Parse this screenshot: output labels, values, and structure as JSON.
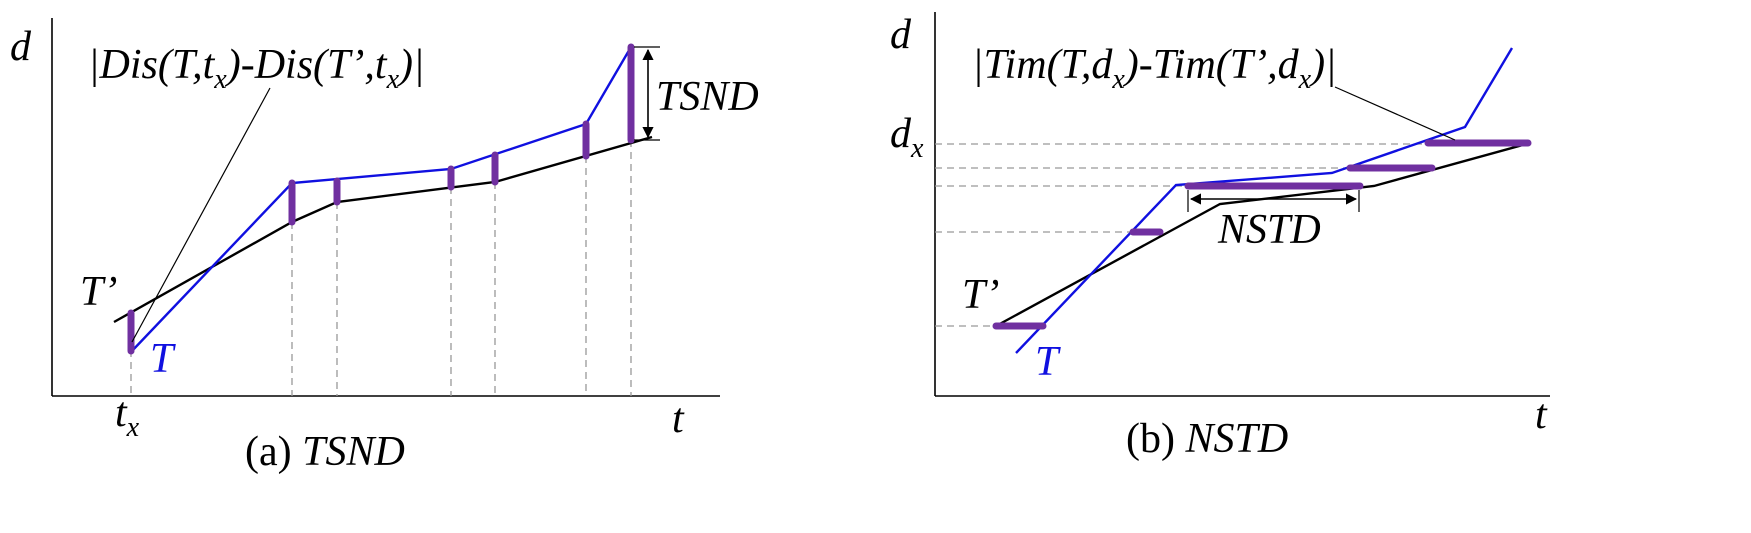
{
  "panel_a": {
    "axis_y": "d",
    "axis_x": "t",
    "formula": "|Dis(T,tx)-Dis(T’,tx)|",
    "formula_parts": {
      "open": "|Dis(T,t",
      "sub1": "x",
      "mid": ")-Dis(T’,t",
      "sub2": "x",
      "close": ")|"
    },
    "measure_label": "TSND",
    "series_T_label": "T",
    "series_Tp_label": "T’",
    "tick_main": "t",
    "tick_sub": "x",
    "caption_prefix": "(a) ",
    "caption_name": "TSND"
  },
  "panel_b": {
    "axis_y": "d",
    "axis_x": "t",
    "formula": "|Tim(T,dx)-Tim(T’,dx)|",
    "formula_parts": {
      "open": "|Tim(T,d",
      "sub1": "x",
      "mid": ")-Tim(T’,d",
      "sub2": "x",
      "close": ")|"
    },
    "measure_label": "NSTD",
    "series_T_label": "T",
    "series_Tp_label": "T’",
    "tick_main": "d",
    "tick_sub": "x",
    "caption_prefix": "(b) ",
    "caption_name": "NSTD"
  },
  "colors": {
    "series_T": "#1010e0",
    "series_Tp": "#000000",
    "highlight": "#7030a0",
    "guide": "#999999"
  }
}
